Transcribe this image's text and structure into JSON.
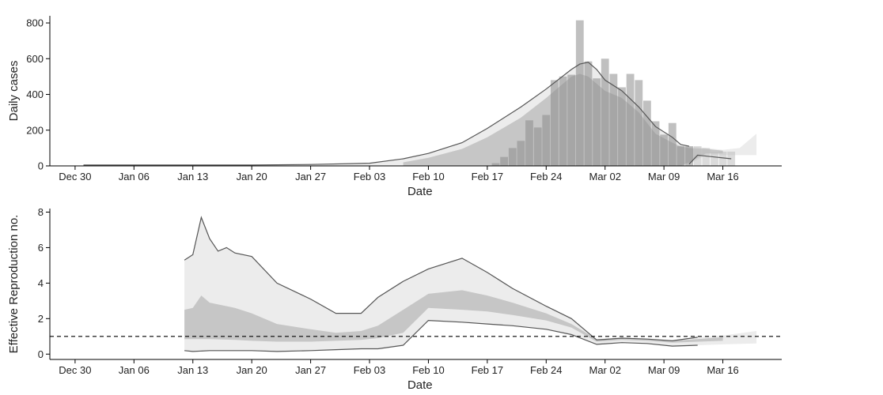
{
  "chart_data": [
    {
      "type": "bar",
      "xlabel": "Date",
      "ylabel": "Daily cases",
      "ylim": [
        0,
        840
      ],
      "xlim": [
        "2019-12-27",
        "2020-03-23"
      ],
      "yticks": [
        0,
        200,
        400,
        600,
        800
      ],
      "xticks": [
        {
          "date": "2019-12-30",
          "label": "Dec 30"
        },
        {
          "date": "2020-01-06",
          "label": "Jan 06"
        },
        {
          "date": "2020-01-13",
          "label": "Jan 13"
        },
        {
          "date": "2020-01-20",
          "label": "Jan 20"
        },
        {
          "date": "2020-01-27",
          "label": "Jan 27"
        },
        {
          "date": "2020-02-03",
          "label": "Feb 03"
        },
        {
          "date": "2020-02-10",
          "label": "Feb 10"
        },
        {
          "date": "2020-02-17",
          "label": "Feb 17"
        },
        {
          "date": "2020-02-24",
          "label": "Feb 24"
        },
        {
          "date": "2020-03-02",
          "label": "Mar 02"
        },
        {
          "date": "2020-03-09",
          "label": "Mar 09"
        },
        {
          "date": "2020-03-16",
          "label": "Mar 16"
        }
      ],
      "bands": [
        {
          "color": "#ececec",
          "points": [
            [
              "2019-12-31",
              0,
              5
            ],
            [
              "2020-01-20",
              0,
              5
            ],
            [
              "2020-01-27",
              0,
              8
            ],
            [
              "2020-02-03",
              0,
              15
            ],
            [
              "2020-02-07",
              0,
              40
            ],
            [
              "2020-02-10",
              0,
              70
            ],
            [
              "2020-02-14",
              0,
              130
            ],
            [
              "2020-02-17",
              0,
              210
            ],
            [
              "2020-02-21",
              0,
              330
            ],
            [
              "2020-02-24",
              0,
              430
            ],
            [
              "2020-02-27",
              0,
              540
            ],
            [
              "2020-02-28",
              0,
              570
            ],
            [
              "2020-02-29",
              0,
              580
            ],
            [
              "2020-03-01",
              0,
              540
            ],
            [
              "2020-03-02",
              0,
              480
            ],
            [
              "2020-03-04",
              0,
              420
            ],
            [
              "2020-03-06",
              0,
              330
            ],
            [
              "2020-03-08",
              0,
              220
            ],
            [
              "2020-03-10",
              0,
              160
            ],
            [
              "2020-03-11",
              0,
              120
            ],
            [
              "2020-03-12",
              10,
              110
            ],
            [
              "2020-03-14",
              60,
              100
            ],
            [
              "2020-03-16",
              60,
              90
            ],
            [
              "2020-03-18",
              60,
              100
            ],
            [
              "2020-03-20",
              60,
              180
            ]
          ]
        },
        {
          "color": "#c6c6c6",
          "points": [
            [
              "2020-02-07",
              0,
              20
            ],
            [
              "2020-02-10",
              0,
              45
            ],
            [
              "2020-02-14",
              0,
              95
            ],
            [
              "2020-02-17",
              0,
              160
            ],
            [
              "2020-02-21",
              0,
              270
            ],
            [
              "2020-02-24",
              0,
              380
            ],
            [
              "2020-02-27",
              0,
              500
            ],
            [
              "2020-02-28",
              0,
              515
            ],
            [
              "2020-02-29",
              0,
              500
            ],
            [
              "2020-03-01",
              0,
              460
            ],
            [
              "2020-03-02",
              0,
              420
            ],
            [
              "2020-03-04",
              0,
              380
            ],
            [
              "2020-03-06",
              0,
              300
            ],
            [
              "2020-03-08",
              0,
              180
            ],
            [
              "2020-03-10",
              0,
              130
            ],
            [
              "2020-03-11",
              0,
              110
            ],
            [
              "2020-03-12",
              20,
              100
            ],
            [
              "2020-03-14",
              70,
              95
            ],
            [
              "2020-03-16",
              70,
              85
            ]
          ]
        }
      ],
      "lines": [
        {
          "color": "#555555",
          "points": [
            [
              "2019-12-31",
              5
            ],
            [
              "2020-01-20",
              5
            ],
            [
              "2020-01-27",
              8
            ],
            [
              "2020-02-03",
              15
            ],
            [
              "2020-02-07",
              40
            ],
            [
              "2020-02-10",
              70
            ],
            [
              "2020-02-14",
              130
            ],
            [
              "2020-02-17",
              210
            ],
            [
              "2020-02-21",
              330
            ],
            [
              "2020-02-24",
              430
            ],
            [
              "2020-02-27",
              540
            ],
            [
              "2020-02-28",
              570
            ],
            [
              "2020-02-29",
              580
            ],
            [
              "2020-03-01",
              540
            ],
            [
              "2020-03-02",
              480
            ],
            [
              "2020-03-04",
              420
            ],
            [
              "2020-03-06",
              330
            ],
            [
              "2020-03-08",
              220
            ],
            [
              "2020-03-10",
              160
            ],
            [
              "2020-03-11",
              120
            ],
            [
              "2020-03-12",
              110
            ]
          ]
        },
        {
          "color": "#555555",
          "points": [
            [
              "2020-03-12",
              10
            ],
            [
              "2020-03-13",
              60
            ],
            [
              "2020-03-17",
              40
            ]
          ]
        }
      ],
      "bars": {
        "opacity": 0.55,
        "color": "#bdbdbd",
        "dark_color": "#8c8c8c",
        "dark_until": "2020-03-12",
        "data": [
          [
            "2020-02-18",
            15
          ],
          [
            "2020-02-19",
            50
          ],
          [
            "2020-02-20",
            100
          ],
          [
            "2020-02-21",
            140
          ],
          [
            "2020-02-22",
            255
          ],
          [
            "2020-02-23",
            215
          ],
          [
            "2020-02-24",
            285
          ],
          [
            "2020-02-25",
            480
          ],
          [
            "2020-02-26",
            500
          ],
          [
            "2020-02-27",
            510
          ],
          [
            "2020-02-28",
            815
          ],
          [
            "2020-02-29",
            585
          ],
          [
            "2020-03-01",
            490
          ],
          [
            "2020-03-02",
            600
          ],
          [
            "2020-03-03",
            515
          ],
          [
            "2020-03-04",
            440
          ],
          [
            "2020-03-05",
            515
          ],
          [
            "2020-03-06",
            480
          ],
          [
            "2020-03-07",
            365
          ],
          [
            "2020-03-08",
            250
          ],
          [
            "2020-03-09",
            175
          ],
          [
            "2020-03-10",
            240
          ],
          [
            "2020-03-11",
            110
          ],
          [
            "2020-03-12",
            110
          ],
          [
            "2020-03-13",
            110
          ],
          [
            "2020-03-14",
            100
          ],
          [
            "2020-03-15",
            75
          ],
          [
            "2020-03-16",
            80
          ],
          [
            "2020-03-17",
            80
          ]
        ]
      }
    },
    {
      "type": "area",
      "xlabel": "Date",
      "ylabel": "Effective Reproduction no.",
      "ylim": [
        -0.3,
        8.2
      ],
      "xlim": [
        "2019-12-27",
        "2020-03-23"
      ],
      "yticks": [
        0,
        2,
        4,
        6,
        8
      ],
      "reference_line": {
        "y": 1,
        "style": "dashed"
      },
      "xticks": [
        {
          "date": "2019-12-30",
          "label": "Dec 30"
        },
        {
          "date": "2020-01-06",
          "label": "Jan 06"
        },
        {
          "date": "2020-01-13",
          "label": "Jan 13"
        },
        {
          "date": "2020-01-20",
          "label": "Jan 20"
        },
        {
          "date": "2020-01-27",
          "label": "Jan 27"
        },
        {
          "date": "2020-02-03",
          "label": "Feb 03"
        },
        {
          "date": "2020-02-10",
          "label": "Feb 10"
        },
        {
          "date": "2020-02-17",
          "label": "Feb 17"
        },
        {
          "date": "2020-02-24",
          "label": "Feb 24"
        },
        {
          "date": "2020-03-02",
          "label": "Mar 02"
        },
        {
          "date": "2020-03-09",
          "label": "Mar 09"
        },
        {
          "date": "2020-03-16",
          "label": "Mar 16"
        }
      ],
      "bands": [
        {
          "color": "#ececec",
          "points": [
            [
              "2020-01-12",
              0.2,
              5.3
            ],
            [
              "2020-01-13",
              0.15,
              5.6
            ],
            [
              "2020-01-14",
              0.15,
              7.7
            ],
            [
              "2020-01-15",
              0.2,
              6.5
            ],
            [
              "2020-01-16",
              0.2,
              5.8
            ],
            [
              "2020-01-17",
              0.2,
              6.0
            ],
            [
              "2020-01-18",
              0.2,
              5.7
            ],
            [
              "2020-01-20",
              0.2,
              5.5
            ],
            [
              "2020-01-23",
              0.15,
              4.0
            ],
            [
              "2020-01-27",
              0.2,
              3.1
            ],
            [
              "2020-01-30",
              0.25,
              2.3
            ],
            [
              "2020-02-02",
              0.3,
              2.3
            ],
            [
              "2020-02-04",
              0.3,
              3.2
            ],
            [
              "2020-02-07",
              0.5,
              4.1
            ],
            [
              "2020-02-10",
              1.9,
              4.8
            ],
            [
              "2020-02-14",
              1.8,
              5.4
            ],
            [
              "2020-02-17",
              1.7,
              4.6
            ],
            [
              "2020-02-20",
              1.6,
              3.7
            ],
            [
              "2020-02-24",
              1.4,
              2.7
            ],
            [
              "2020-02-27",
              1.1,
              2.0
            ],
            [
              "2020-03-01",
              0.55,
              0.8
            ],
            [
              "2020-03-04",
              0.65,
              0.9
            ],
            [
              "2020-03-07",
              0.6,
              0.85
            ],
            [
              "2020-03-10",
              0.45,
              0.75
            ],
            [
              "2020-03-13",
              0.5,
              0.95
            ],
            [
              "2020-03-16",
              0.55,
              1.05
            ],
            [
              "2020-03-20",
              0.6,
              1.3
            ]
          ]
        },
        {
          "color": "#c6c6c6",
          "points": [
            [
              "2020-01-12",
              0.85,
              2.5
            ],
            [
              "2020-01-13",
              0.85,
              2.6
            ],
            [
              "2020-01-14",
              0.85,
              3.3
            ],
            [
              "2020-01-15",
              0.85,
              2.9
            ],
            [
              "2020-01-18",
              0.8,
              2.6
            ],
            [
              "2020-01-20",
              0.75,
              2.3
            ],
            [
              "2020-01-23",
              0.7,
              1.7
            ],
            [
              "2020-01-27",
              0.7,
              1.4
            ],
            [
              "2020-01-30",
              0.75,
              1.2
            ],
            [
              "2020-02-02",
              0.8,
              1.3
            ],
            [
              "2020-02-04",
              0.9,
              1.6
            ],
            [
              "2020-02-07",
              1.2,
              2.5
            ],
            [
              "2020-02-10",
              2.6,
              3.4
            ],
            [
              "2020-02-14",
              2.5,
              3.6
            ],
            [
              "2020-02-17",
              2.4,
              3.3
            ],
            [
              "2020-02-20",
              2.2,
              2.9
            ],
            [
              "2020-02-24",
              1.9,
              2.3
            ],
            [
              "2020-02-27",
              1.5,
              1.7
            ],
            [
              "2020-03-01",
              0.7,
              0.85
            ],
            [
              "2020-03-04",
              0.8,
              0.9
            ],
            [
              "2020-03-07",
              0.75,
              0.85
            ],
            [
              "2020-03-10",
              0.65,
              0.75
            ],
            [
              "2020-03-13",
              0.7,
              0.85
            ],
            [
              "2020-03-16",
              0.75,
              0.95
            ]
          ]
        }
      ],
      "lines": [
        {
          "color": "#555555",
          "points": [
            [
              "2020-01-12",
              5.3
            ],
            [
              "2020-01-13",
              5.6
            ],
            [
              "2020-01-14",
              7.7
            ],
            [
              "2020-01-15",
              6.5
            ],
            [
              "2020-01-16",
              5.8
            ],
            [
              "2020-01-17",
              6.0
            ],
            [
              "2020-01-18",
              5.7
            ],
            [
              "2020-01-20",
              5.5
            ],
            [
              "2020-01-23",
              4.0
            ],
            [
              "2020-01-27",
              3.1
            ],
            [
              "2020-01-30",
              2.3
            ],
            [
              "2020-02-02",
              2.3
            ],
            [
              "2020-02-04",
              3.2
            ],
            [
              "2020-02-07",
              4.1
            ],
            [
              "2020-02-10",
              4.8
            ],
            [
              "2020-02-14",
              5.4
            ],
            [
              "2020-02-17",
              4.6
            ],
            [
              "2020-02-20",
              3.7
            ],
            [
              "2020-02-24",
              2.7
            ],
            [
              "2020-02-27",
              2.0
            ],
            [
              "2020-03-01",
              0.8
            ],
            [
              "2020-03-04",
              0.9
            ],
            [
              "2020-03-07",
              0.85
            ],
            [
              "2020-03-10",
              0.75
            ],
            [
              "2020-03-13",
              0.95
            ]
          ]
        },
        {
          "color": "#555555",
          "points": [
            [
              "2020-01-12",
              0.2
            ],
            [
              "2020-01-13",
              0.15
            ],
            [
              "2020-01-15",
              0.2
            ],
            [
              "2020-01-20",
              0.2
            ],
            [
              "2020-01-23",
              0.15
            ],
            [
              "2020-01-27",
              0.2
            ],
            [
              "2020-01-30",
              0.25
            ],
            [
              "2020-02-02",
              0.3
            ],
            [
              "2020-02-04",
              0.3
            ],
            [
              "2020-02-07",
              0.5
            ],
            [
              "2020-02-10",
              1.9
            ],
            [
              "2020-02-14",
              1.8
            ],
            [
              "2020-02-17",
              1.7
            ],
            [
              "2020-02-20",
              1.6
            ],
            [
              "2020-02-24",
              1.4
            ],
            [
              "2020-02-27",
              1.1
            ],
            [
              "2020-03-01",
              0.55
            ],
            [
              "2020-03-04",
              0.65
            ],
            [
              "2020-03-07",
              0.6
            ],
            [
              "2020-03-10",
              0.45
            ],
            [
              "2020-03-13",
              0.5
            ]
          ]
        }
      ]
    }
  ]
}
